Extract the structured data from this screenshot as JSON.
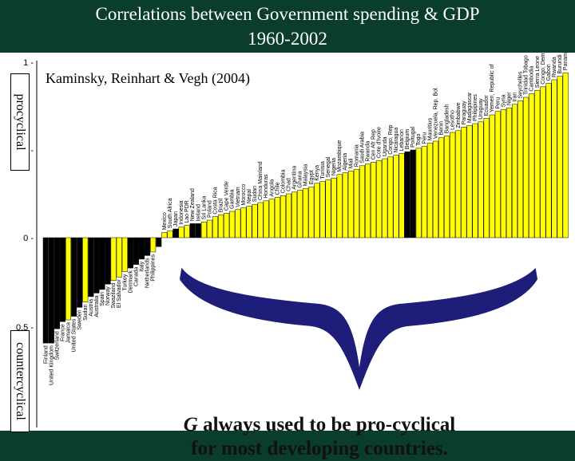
{
  "slide": {
    "title_line1": "Correlations between Government spending & GDP",
    "title_line2": "1960-2002",
    "citation": "Kaminsky, Reinhart & Vegh (2004)",
    "label_procyclical": "procyclical",
    "label_countercyclical": "countercyclical",
    "callout_g": "G",
    "callout_line1_rest": " always used to be  pro-cyclical",
    "callout_line2": "for most developing countries."
  },
  "chart_data": {
    "type": "bar",
    "ylim": [
      -0.65,
      1.0
    ],
    "yticks": [
      {
        "v": 1,
        "label": "1 -"
      },
      {
        "v": 0.5,
        "label": "0.5 -"
      },
      {
        "v": 0,
        "label": "0 -"
      },
      {
        "v": -0.5,
        "label": "0.5 -"
      }
    ],
    "oecd_color": "#000000",
    "developing_color": "#ffff00",
    "brace_color": "#1e1e7a",
    "bars": [
      {
        "c": "Finland",
        "v": -0.59,
        "oecd": true
      },
      {
        "c": "United Kingdom",
        "v": -0.59,
        "oecd": true
      },
      {
        "c": "Switzerland",
        "v": -0.51,
        "oecd": true
      },
      {
        "c": "France",
        "v": -0.47,
        "oecd": true
      },
      {
        "c": "Jamaica",
        "v": -0.46,
        "oecd": false
      },
      {
        "c": "United States",
        "v": -0.44,
        "oecd": true
      },
      {
        "c": "Sweden",
        "v": -0.39,
        "oecd": true
      },
      {
        "c": "Sudan",
        "v": -0.36,
        "oecd": false
      },
      {
        "c": "Austria",
        "v": -0.33,
        "oecd": true
      },
      {
        "c": "Australia",
        "v": -0.31,
        "oecd": true
      },
      {
        "c": "Spain",
        "v": -0.29,
        "oecd": true
      },
      {
        "c": "Norway",
        "v": -0.26,
        "oecd": true
      },
      {
        "c": "Swaziland",
        "v": -0.24,
        "oecd": false
      },
      {
        "c": "El Salvador",
        "v": -0.22,
        "oecd": false
      },
      {
        "c": "Turkey",
        "v": -0.19,
        "oecd": false
      },
      {
        "c": "Denmark",
        "v": -0.17,
        "oecd": true
      },
      {
        "c": "Canada",
        "v": -0.15,
        "oecd": true
      },
      {
        "c": "Italy",
        "v": -0.12,
        "oecd": true
      },
      {
        "c": "Netherlands",
        "v": -0.1,
        "oecd": true
      },
      {
        "c": "Philippines",
        "v": -0.08,
        "oecd": false
      },
      {
        "c": "",
        "v": -0.05,
        "oecd": true
      },
      {
        "c": "Mexico",
        "v": 0.03,
        "oecd": false
      },
      {
        "c": "South Africa",
        "v": 0.04,
        "oecd": false
      },
      {
        "c": "Japan",
        "v": 0.05,
        "oecd": true
      },
      {
        "c": "Indonesia",
        "v": 0.06,
        "oecd": false
      },
      {
        "c": "Lao PDR",
        "v": 0.07,
        "oecd": false
      },
      {
        "c": "New Zealand",
        "v": 0.08,
        "oecd": true
      },
      {
        "c": "Ireland",
        "v": 0.08,
        "oecd": true
      },
      {
        "c": "Sri Lanka",
        "v": 0.09,
        "oecd": false
      },
      {
        "c": "Poland",
        "v": 0.1,
        "oecd": false
      },
      {
        "c": "Costa Rica",
        "v": 0.12,
        "oecd": false
      },
      {
        "c": "Brazil",
        "v": 0.13,
        "oecd": false
      },
      {
        "c": "Cape Verde",
        "v": 0.14,
        "oecd": false
      },
      {
        "c": "Gambia",
        "v": 0.15,
        "oecd": false
      },
      {
        "c": "Vietnam",
        "v": 0.16,
        "oecd": false
      },
      {
        "c": "Morocco",
        "v": 0.17,
        "oecd": false
      },
      {
        "c": "Nepal",
        "v": 0.18,
        "oecd": false
      },
      {
        "c": "Sudan",
        "v": 0.19,
        "oecd": false
      },
      {
        "c": "China Mainland",
        "v": 0.2,
        "oecd": false
      },
      {
        "c": "Honduras",
        "v": 0.21,
        "oecd": false
      },
      {
        "c": "Angola",
        "v": 0.22,
        "oecd": false
      },
      {
        "c": "Chile",
        "v": 0.23,
        "oecd": false
      },
      {
        "c": "Colombia",
        "v": 0.24,
        "oecd": false
      },
      {
        "c": "Chad",
        "v": 0.25,
        "oecd": false
      },
      {
        "c": "Argentina",
        "v": 0.26,
        "oecd": false
      },
      {
        "c": "Ghana",
        "v": 0.27,
        "oecd": false
      },
      {
        "c": "Malaysia",
        "v": 0.28,
        "oecd": false
      },
      {
        "c": "Egypt",
        "v": 0.29,
        "oecd": false
      },
      {
        "c": "Kenya",
        "v": 0.31,
        "oecd": false
      },
      {
        "c": "Tunisia",
        "v": 0.32,
        "oecd": false
      },
      {
        "c": "Senegal",
        "v": 0.33,
        "oecd": false
      },
      {
        "c": "Nigeria",
        "v": 0.34,
        "oecd": false
      },
      {
        "c": "Mozambique",
        "v": 0.36,
        "oecd": false
      },
      {
        "c": "Algeria",
        "v": 0.37,
        "oecd": false
      },
      {
        "c": "Mali",
        "v": 0.38,
        "oecd": false
      },
      {
        "c": "Romania",
        "v": 0.39,
        "oecd": false
      },
      {
        "c": "Saudi Arabia",
        "v": 0.41,
        "oecd": false
      },
      {
        "c": "Rwanda",
        "v": 0.42,
        "oecd": false
      },
      {
        "c": "Cen Afr Rep",
        "v": 0.43,
        "oecd": false
      },
      {
        "c": "Cote d'Ivoire",
        "v": 0.44,
        "oecd": false
      },
      {
        "c": "Uganda",
        "v": 0.45,
        "oecd": false
      },
      {
        "c": "Congo, Rep",
        "v": 0.46,
        "oecd": false
      },
      {
        "c": "Nicaragua",
        "v": 0.47,
        "oecd": false
      },
      {
        "c": "Lebanon",
        "v": 0.48,
        "oecd": false
      },
      {
        "c": "Belgium",
        "v": 0.49,
        "oecd": true
      },
      {
        "c": "Portugal",
        "v": 0.5,
        "oecd": true
      },
      {
        "c": "Togo",
        "v": 0.51,
        "oecd": false
      },
      {
        "c": "Peru",
        "v": 0.52,
        "oecd": false
      },
      {
        "c": "Mauritius",
        "v": 0.54,
        "oecd": false
      },
      {
        "c": "Venezuela, Rep. Bol.",
        "v": 0.55,
        "oecd": false
      },
      {
        "c": "Benin",
        "v": 0.57,
        "oecd": false
      },
      {
        "c": "Bangladesh",
        "v": 0.58,
        "oecd": false
      },
      {
        "c": "Lesotho",
        "v": 0.6,
        "oecd": false
      },
      {
        "c": "Zimbabwe",
        "v": 0.61,
        "oecd": false
      },
      {
        "c": "Paraguay",
        "v": 0.63,
        "oecd": false
      },
      {
        "c": "Madagascar",
        "v": 0.64,
        "oecd": false
      },
      {
        "c": "Philippines",
        "v": 0.65,
        "oecd": false
      },
      {
        "c": "Uruguay",
        "v": 0.66,
        "oecd": false
      },
      {
        "c": "Ecuador",
        "v": 0.68,
        "oecd": false
      },
      {
        "c": "Yemen, Republic of",
        "v": 0.7,
        "oecd": false
      },
      {
        "c": "Peru",
        "v": 0.72,
        "oecd": false
      },
      {
        "c": "Syria",
        "v": 0.73,
        "oecd": false
      },
      {
        "c": "Niger",
        "v": 0.74,
        "oecd": false
      },
      {
        "c": "Iran",
        "v": 0.76,
        "oecd": false
      },
      {
        "c": "Seychelles",
        "v": 0.78,
        "oecd": false
      },
      {
        "c": "Trinidad Tobago",
        "v": 0.8,
        "oecd": false
      },
      {
        "c": "Cambodia",
        "v": 0.82,
        "oecd": false
      },
      {
        "c": "Sierra Leone",
        "v": 0.84,
        "oecd": false
      },
      {
        "c": "Congo, Dem. Rep.",
        "v": 0.86,
        "oecd": false
      },
      {
        "c": "Gabon",
        "v": 0.88,
        "oecd": false
      },
      {
        "c": "Rwanda",
        "v": 0.9,
        "oecd": false
      },
      {
        "c": "Burundi",
        "v": 0.92,
        "oecd": false
      },
      {
        "c": "Panama",
        "v": 0.94,
        "oecd": false
      }
    ]
  }
}
